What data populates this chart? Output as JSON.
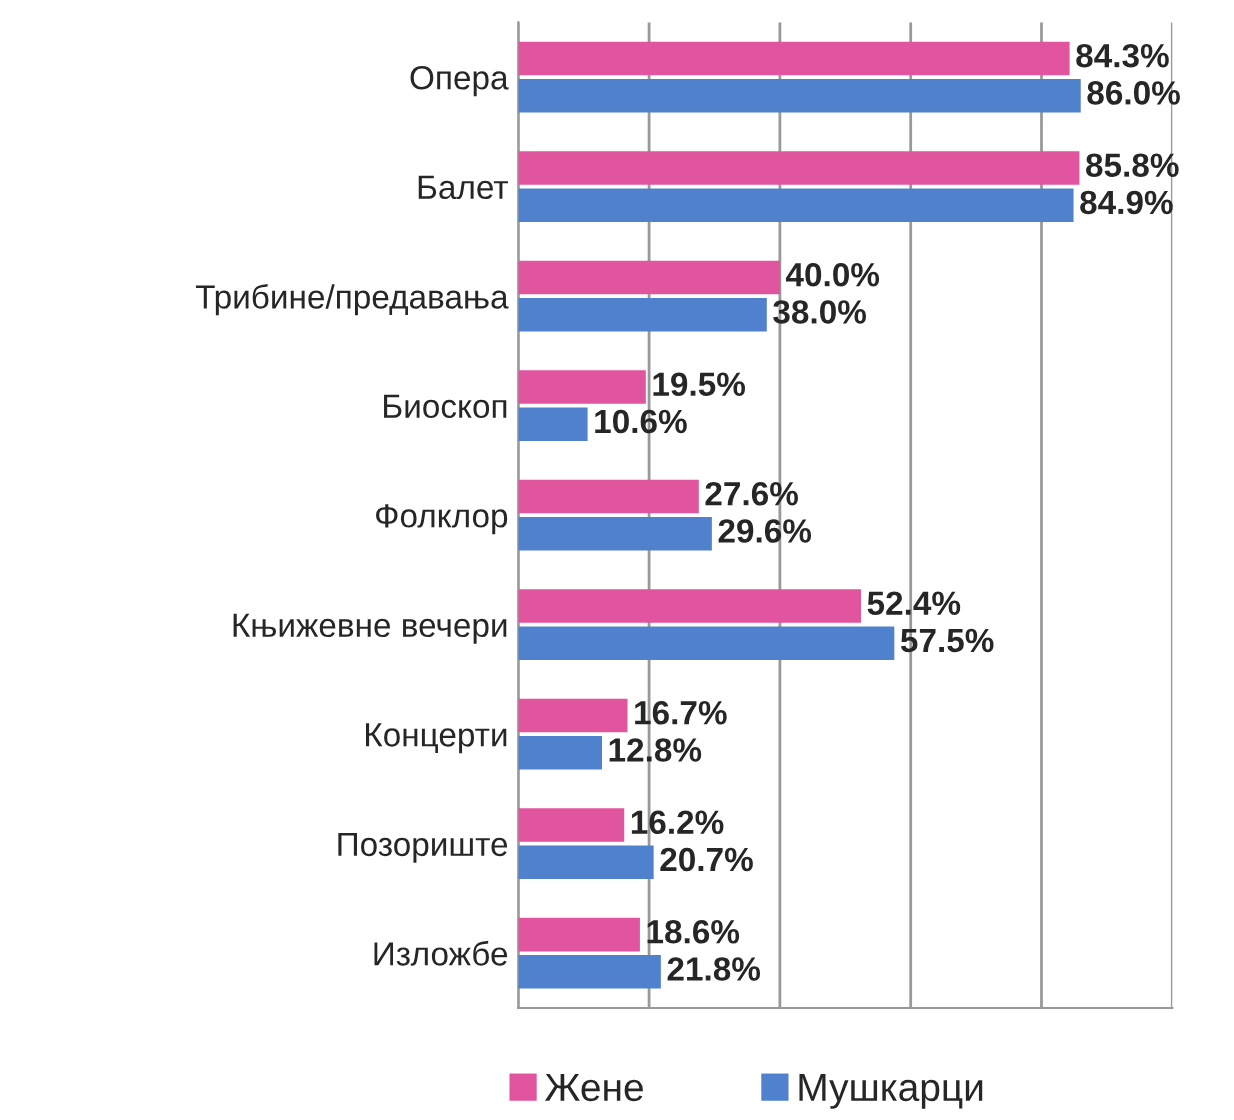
{
  "chart_data": {
    "type": "bar",
    "orientation": "horizontal",
    "categories": [
      "Опера",
      "Балет",
      "Трибине/предавања",
      "Биоскоп",
      "Фолклор",
      "Књижевне вечери",
      "Концерти",
      "Позориште",
      "Изложбе"
    ],
    "series": [
      {
        "name": "Жене",
        "color": "#e0559e",
        "values": [
          84.3,
          85.8,
          40.0,
          19.5,
          27.6,
          52.4,
          16.7,
          16.2,
          18.6
        ],
        "value_labels": [
          "84.3%",
          "85.8%",
          "40.0%",
          "19.5%",
          "27.6%",
          "52.4%",
          "16.7%",
          "16.2%",
          "18.6%"
        ]
      },
      {
        "name": "Мушкарци",
        "color": "#4f81cd",
        "values": [
          86.0,
          84.9,
          38.0,
          10.6,
          29.6,
          57.5,
          12.8,
          20.7,
          21.8
        ],
        "value_labels": [
          "86.0%",
          "84.9%",
          "38.0%",
          "10.6%",
          "29.6%",
          "57.5%",
          "12.8%",
          "20.7%",
          "21.8%"
        ]
      }
    ],
    "xlim": [
      0,
      100
    ],
    "xticks": [
      {
        "value": 0,
        "label": null
      },
      {
        "value": 20,
        "label": null
      },
      {
        "value": 40,
        "label": null
      },
      {
        "value": 60,
        "label": null
      },
      {
        "value": 80,
        "label": null
      },
      {
        "value": 100,
        "label": null
      }
    ],
    "tick_labels": "y",
    "grid": "x",
    "legend": "bottom"
  }
}
